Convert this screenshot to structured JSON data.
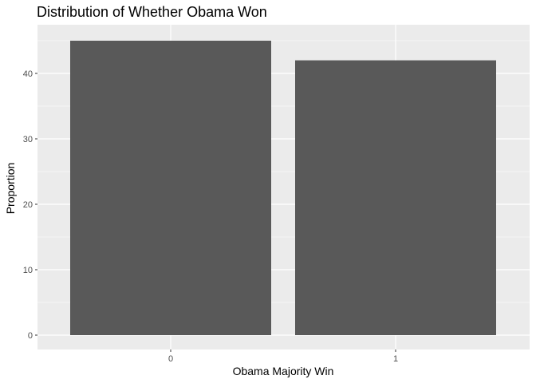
{
  "chart_data": {
    "type": "bar",
    "title": "Distribution of Whether Obama Won",
    "xlabel": "Obama Majority Win",
    "ylabel": "Proportion",
    "categories": [
      "0",
      "1"
    ],
    "values": [
      45,
      42
    ],
    "ylim": [
      0,
      46.5
    ],
    "yticks": [
      0,
      10,
      20,
      30,
      40
    ],
    "grid": true,
    "legend": "none",
    "colors": {
      "panel": "#ebebeb",
      "grid_major": "#ffffff",
      "bar": "#595959",
      "tick": "#333333"
    }
  }
}
